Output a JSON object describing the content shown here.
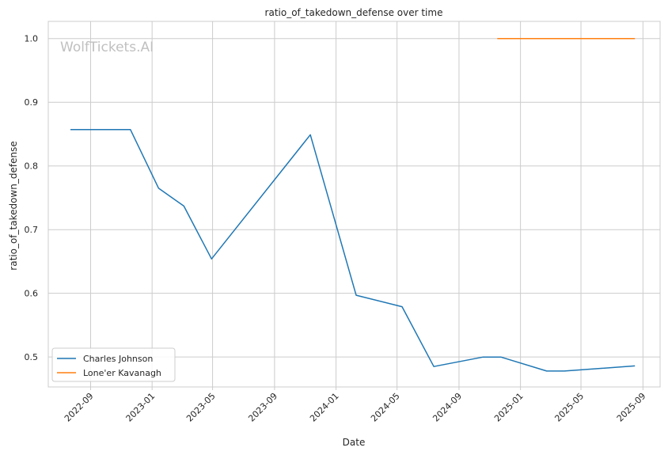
{
  "chart_data": {
    "type": "line",
    "title": "ratio_of_takedown_defense over time",
    "xlabel": "Date",
    "ylabel": "ratio_of_takedown_defense",
    "watermark": "WolfTickets.AI",
    "x_ticks": [
      "2022-09",
      "2023-01",
      "2023-05",
      "2023-09",
      "2024-01",
      "2024-05",
      "2024-09",
      "2025-01",
      "2025-05",
      "2025-09"
    ],
    "y_ticks": [
      "0.5",
      "0.6",
      "0.7",
      "0.8",
      "0.9",
      "1.0"
    ],
    "xlim": [
      "2022-06-09",
      "2025-10-05"
    ],
    "ylim": [
      0.453,
      1.027
    ],
    "grid": true,
    "legend_position": "lower-left",
    "series": [
      {
        "name": "Charles Johnson",
        "color": "#1f77b4",
        "points": [
          [
            "2022-07-23",
            0.857
          ],
          [
            "2022-11-19",
            0.857
          ],
          [
            "2023-01-14",
            0.765
          ],
          [
            "2023-03-05",
            0.737
          ],
          [
            "2023-04-29",
            0.654
          ],
          [
            "2023-11-11",
            0.849
          ],
          [
            "2024-02-10",
            0.597
          ],
          [
            "2024-05-11",
            0.579
          ],
          [
            "2024-07-13",
            0.485
          ],
          [
            "2024-10-19",
            0.5
          ],
          [
            "2024-11-23",
            0.5
          ],
          [
            "2025-02-22",
            0.478
          ],
          [
            "2025-03-29",
            0.478
          ],
          [
            "2025-08-16",
            0.486
          ]
        ]
      },
      {
        "name": "Lone'er Kavanagh",
        "color": "#ff7f0e",
        "points": [
          [
            "2024-11-16",
            1.0
          ],
          [
            "2025-08-16",
            1.0
          ]
        ]
      }
    ]
  }
}
